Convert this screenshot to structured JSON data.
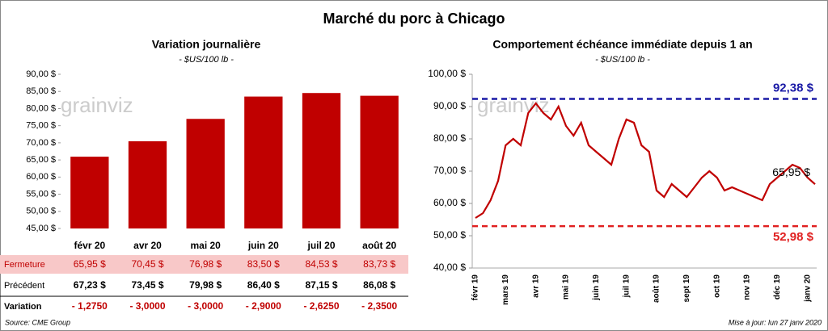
{
  "title": "Marché du porc à Chicago",
  "watermark": "grainviz",
  "chart_data": [
    {
      "type": "bar",
      "title": "Variation journalière",
      "subtitle": "- $US/100 lb -",
      "categories": [
        "févr 20",
        "avr 20",
        "mai 20",
        "juin 20",
        "juil 20",
        "août 20"
      ],
      "values": [
        65.95,
        70.45,
        76.98,
        83.5,
        84.53,
        83.73
      ],
      "value_labels": [
        "65,95  $",
        "70,45  $",
        "76,98  $",
        "83,50  $",
        "84,53  $",
        "83,73  $"
      ],
      "color": "#c00000",
      "ylim": [
        45,
        90
      ],
      "yticks": [
        {
          "value": 45,
          "label": "45,00 $"
        },
        {
          "value": 50,
          "label": "50,00 $"
        },
        {
          "value": 55,
          "label": "55,00 $"
        },
        {
          "value": 60,
          "label": "60,00 $"
        },
        {
          "value": 65,
          "label": "65,00 $"
        },
        {
          "value": 70,
          "label": "70,00 $"
        },
        {
          "value": 75,
          "label": "75,00 $"
        },
        {
          "value": 80,
          "label": "80,00 $"
        },
        {
          "value": 85,
          "label": "85,00 $"
        },
        {
          "value": 90,
          "label": "90,00 $"
        }
      ]
    },
    {
      "type": "line",
      "title": "Comportement  échéance immédiate depuis 1 an",
      "subtitle": "- $US/100 lb -",
      "x": [
        "févr 19",
        null,
        null,
        null,
        "mars 19",
        null,
        null,
        null,
        "avr 19",
        null,
        null,
        null,
        "mai 19",
        null,
        null,
        null,
        "juin 19",
        null,
        null,
        null,
        "juil 19",
        null,
        null,
        null,
        "août 19",
        null,
        null,
        null,
        "sept 19",
        null,
        null,
        null,
        "oct 19",
        null,
        null,
        null,
        "nov 19",
        null,
        null,
        null,
        "déc 19",
        null,
        null,
        null,
        "janv 20",
        null
      ],
      "series": [
        {
          "name": "Échéance immédiate",
          "color": "#c00000",
          "values": [
            55.5,
            57,
            61,
            67,
            78,
            80,
            78,
            88,
            91,
            88,
            86,
            90,
            84,
            81,
            85,
            78,
            76,
            74,
            72,
            80,
            86,
            85,
            78,
            76,
            64,
            62,
            66,
            64,
            62,
            65,
            68,
            70,
            68,
            64,
            65,
            64,
            63,
            62,
            61,
            66,
            68,
            70,
            72,
            71,
            68,
            65.95
          ]
        }
      ],
      "ref_lines": [
        {
          "value": 92.38,
          "label": "92,38 $",
          "color": "#1a1aa6"
        },
        {
          "value": 52.98,
          "label": "52,98 $",
          "color": "#e02020"
        }
      ],
      "annotations": [
        {
          "text": "65,95 $"
        }
      ],
      "ylim": [
        40,
        100
      ],
      "yticks": [
        {
          "value": 40,
          "label": "40,00 $"
        },
        {
          "value": 50,
          "label": "50,00 $"
        },
        {
          "value": 60,
          "label": "60,00 $"
        },
        {
          "value": 70,
          "label": "70,00 $"
        },
        {
          "value": 80,
          "label": "80,00 $"
        },
        {
          "value": 90,
          "label": "90,00 $"
        },
        {
          "value": 100,
          "label": "100,00 $"
        }
      ]
    }
  ],
  "table": {
    "rows": [
      {
        "label": "Fermeture"
      },
      {
        "label": "Précédent",
        "cells": [
          "67,23  $",
          "73,45  $",
          "79,98  $",
          "86,40  $",
          "87,15  $",
          "86,08  $"
        ]
      },
      {
        "label": "Variation",
        "cells": [
          "- 1,2750",
          "- 3,0000",
          "- 3,0000",
          "- 2,9000",
          "- 2,6250",
          "- 2,3500"
        ]
      }
    ]
  },
  "source": "Source: CME Group",
  "update": "Mise à jour: lun 27 janv 2020"
}
